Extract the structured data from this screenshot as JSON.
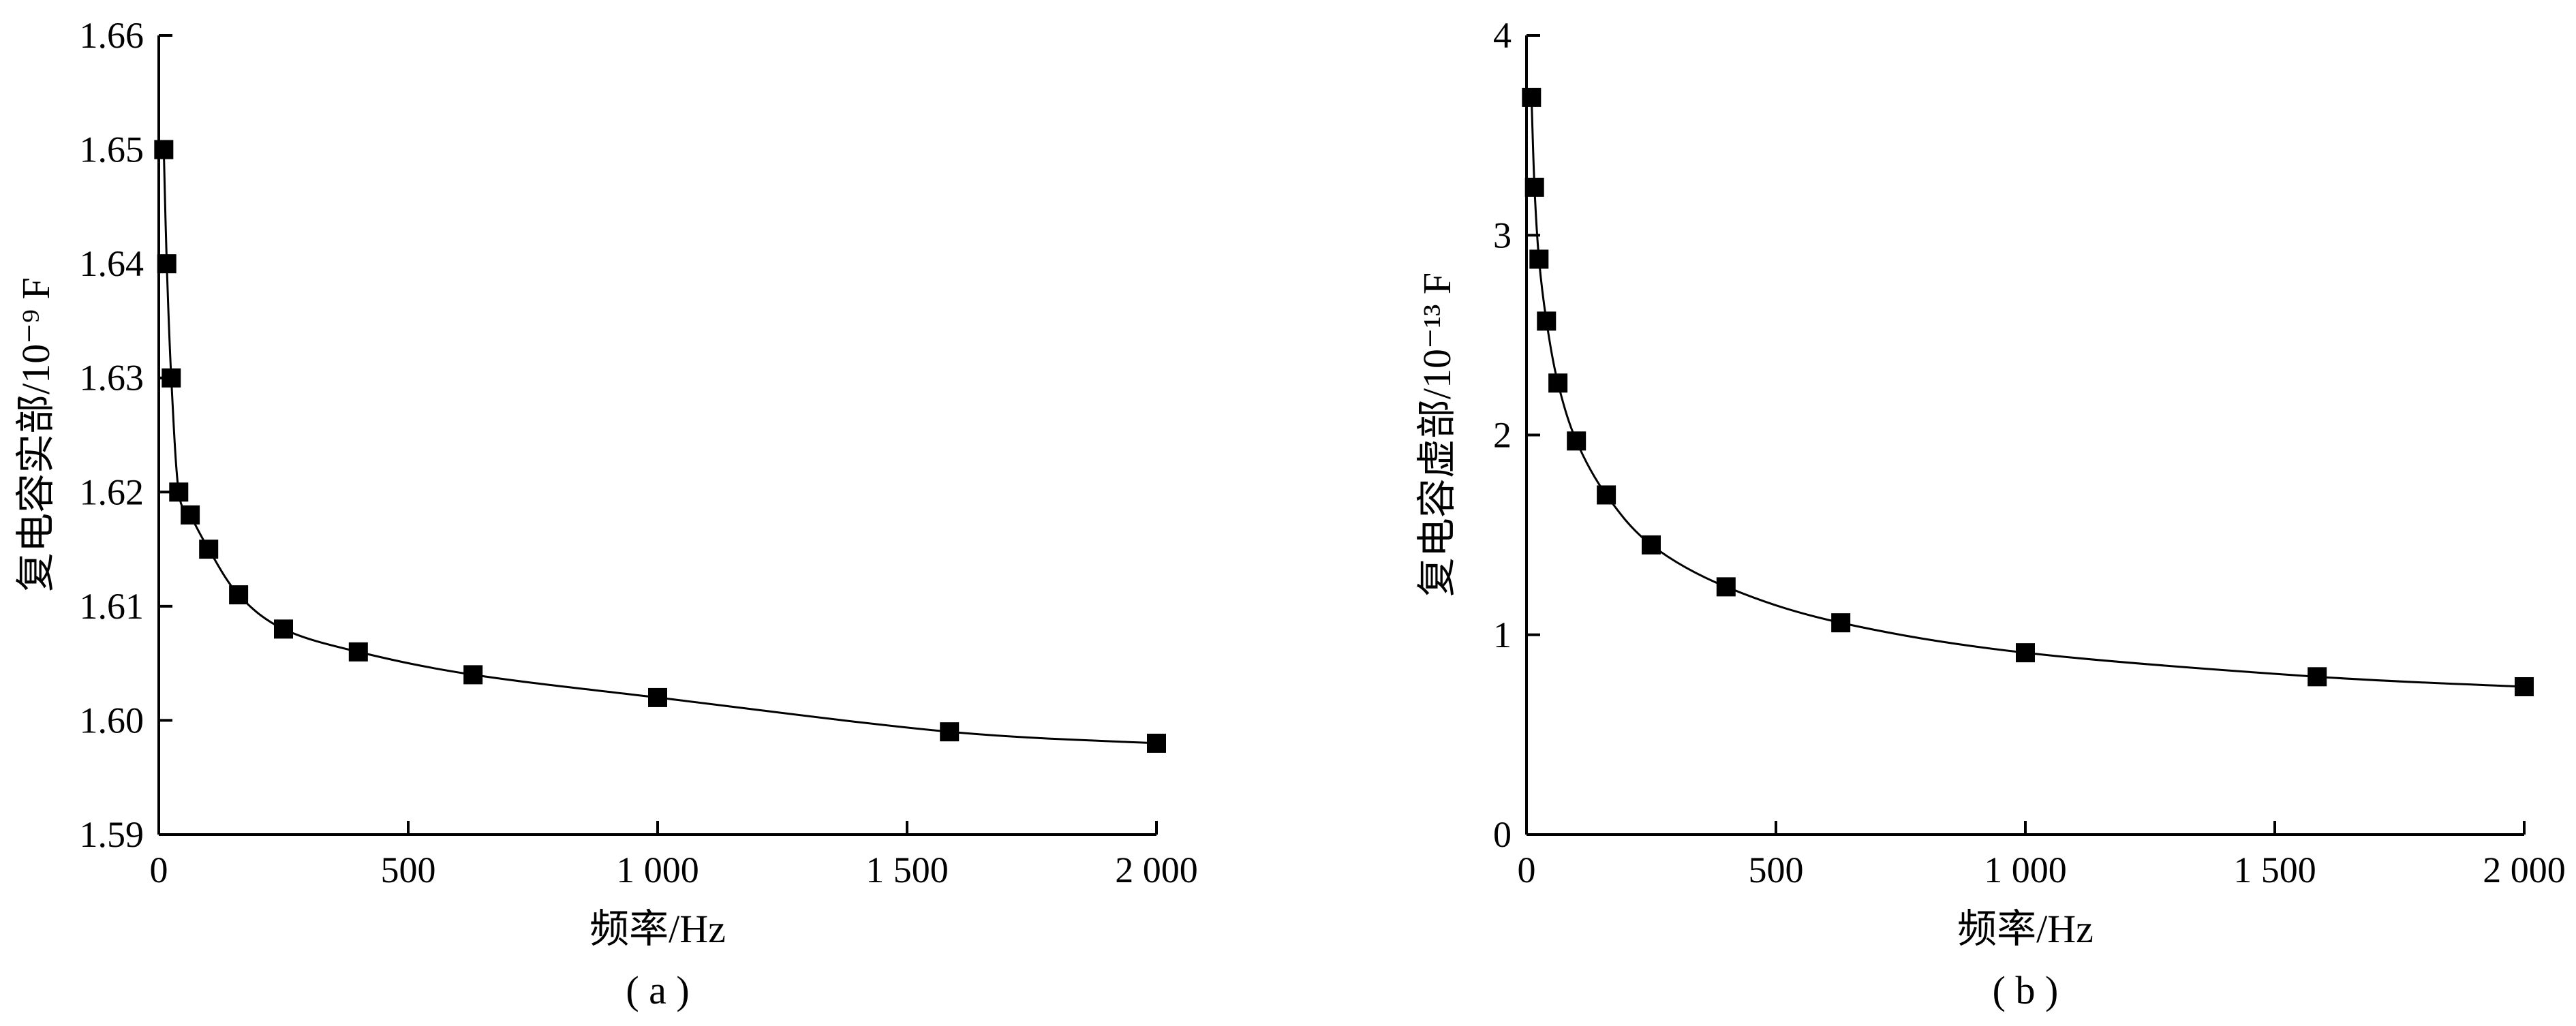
{
  "chart_data": [
    {
      "type": "line",
      "panel_label": "( a )",
      "xlabel": "频率/Hz",
      "ylabel": "复电容实部/10⁻⁹ F",
      "xlim": [
        0,
        2000
      ],
      "ylim": [
        1.59,
        1.66
      ],
      "x_ticks": [
        0,
        500,
        1000,
        1500,
        2000
      ],
      "x_tick_labels": [
        "0",
        "500",
        "1 000",
        "1 500",
        "2 000"
      ],
      "y_ticks": [
        1.59,
        1.6,
        1.61,
        1.62,
        1.63,
        1.64,
        1.65,
        1.66
      ],
      "y_tick_labels": [
        "1.59",
        "1.60",
        "1.61",
        "1.62",
        "1.63",
        "1.64",
        "1.65",
        "1.66"
      ],
      "marker": "square",
      "grid": false,
      "series": [
        {
          "x": [
            10,
            16,
            25,
            40,
            63,
            100,
            160,
            250,
            400,
            630,
            1000,
            1585,
            2000
          ],
          "y": [
            1.65,
            1.64,
            1.63,
            1.62,
            1.618,
            1.615,
            1.611,
            1.608,
            1.606,
            1.604,
            1.602,
            1.599,
            1.598
          ]
        }
      ]
    },
    {
      "type": "line",
      "panel_label": "( b )",
      "xlabel": "频率/Hz",
      "ylabel": "复电容虚部/10⁻¹³ F",
      "xlim": [
        0,
        2000
      ],
      "ylim": [
        0,
        4
      ],
      "x_ticks": [
        0,
        500,
        1000,
        1500,
        2000
      ],
      "x_tick_labels": [
        "0",
        "500",
        "1 000",
        "1 500",
        "2 000"
      ],
      "y_ticks": [
        0,
        1,
        2,
        3,
        4
      ],
      "y_tick_labels": [
        "0",
        "1",
        "2",
        "3",
        "4"
      ],
      "marker": "square",
      "grid": false,
      "series": [
        {
          "x": [
            10,
            16,
            25,
            40,
            63,
            100,
            160,
            250,
            400,
            630,
            1000,
            1585,
            2000
          ],
          "y": [
            3.69,
            3.24,
            2.88,
            2.57,
            2.26,
            1.97,
            1.7,
            1.45,
            1.24,
            1.06,
            0.91,
            0.79,
            0.74
          ]
        }
      ]
    }
  ]
}
